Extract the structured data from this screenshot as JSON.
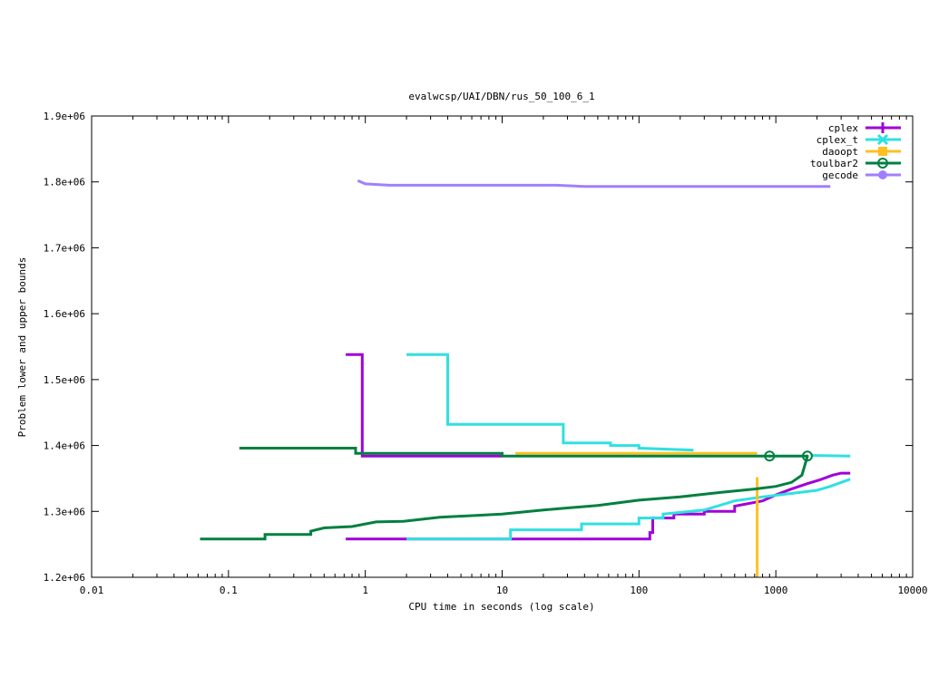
{
  "chart_data": {
    "type": "line",
    "title": "evalwcsp/UAI/DBN/rus_50_100_6_1",
    "xlabel": "CPU time in seconds (log scale)",
    "ylabel": "Problem lower and upper bounds",
    "xscale": "log",
    "xlim": [
      0.01,
      10000
    ],
    "ylim": [
      1200000,
      1900000
    ],
    "x_ticks": [
      0.01,
      0.1,
      1,
      10,
      100,
      1000,
      10000
    ],
    "x_tick_labels": [
      "0.01",
      "0.1",
      "1",
      "10",
      "100",
      "1000",
      "10000"
    ],
    "y_ticks": [
      1200000,
      1300000,
      1400000,
      1500000,
      1600000,
      1700000,
      1800000,
      1900000
    ],
    "y_tick_labels": [
      "1.2e+06",
      "1.3e+06",
      "1.4e+06",
      "1.5e+06",
      "1.6e+06",
      "1.7e+06",
      "1.8e+06",
      "1.9e+06"
    ],
    "legend_position": "top-right",
    "series": [
      {
        "name": "cplex",
        "color": "#a000d8",
        "marker": "plus",
        "paths": [
          [
            [
              0.72,
              1538000
            ],
            [
              0.95,
              1538000
            ],
            [
              0.95,
              1384000
            ],
            [
              10,
              1384000
            ]
          ],
          [
            [
              0.72,
              1258000
            ],
            [
              120,
              1258000
            ],
            [
              120,
              1268000
            ],
            [
              126,
              1268000
            ],
            [
              126,
              1290000
            ],
            [
              180,
              1290000
            ],
            [
              180,
              1296000
            ],
            [
              300,
              1296000
            ],
            [
              300,
              1300000
            ],
            [
              500,
              1300000
            ],
            [
              500,
              1308000
            ],
            [
              800,
              1316000
            ],
            [
              1000,
              1325000
            ],
            [
              1300,
              1334000
            ],
            [
              1700,
              1342000
            ],
            [
              2100,
              1348000
            ],
            [
              2600,
              1355000
            ],
            [
              3000,
              1358000
            ],
            [
              3500,
              1358000
            ]
          ]
        ],
        "markers": []
      },
      {
        "name": "cplex_t",
        "color": "#30e0e0",
        "marker": "x",
        "paths": [
          [
            [
              2,
              1538000
            ],
            [
              4,
              1538000
            ],
            [
              4,
              1432000
            ],
            [
              28,
              1432000
            ],
            [
              28,
              1404000
            ],
            [
              62,
              1404000
            ],
            [
              62,
              1400000
            ],
            [
              100,
              1400000
            ],
            [
              100,
              1396000
            ],
            [
              250,
              1393000
            ]
          ],
          [
            [
              1800,
              1385000
            ],
            [
              3500,
              1384000
            ]
          ],
          [
            [
              2,
              1258000
            ],
            [
              11.5,
              1258000
            ],
            [
              11.5,
              1272000
            ],
            [
              38,
              1272000
            ],
            [
              38,
              1281000
            ],
            [
              100,
              1281000
            ],
            [
              100,
              1290000
            ],
            [
              150,
              1290000
            ],
            [
              150,
              1296000
            ],
            [
              300,
              1302000
            ],
            [
              500,
              1316000
            ],
            [
              800,
              1322000
            ],
            [
              1400,
              1328000
            ],
            [
              2000,
              1332000
            ],
            [
              2500,
              1338000
            ],
            [
              3500,
              1349000
            ]
          ]
        ],
        "markers": []
      },
      {
        "name": "daoopt",
        "color": "#ffc020",
        "marker": "square",
        "paths": [
          [
            [
              12.5,
              1388000
            ],
            [
              730,
              1388000
            ]
          ],
          [
            [
              730,
              1200000
            ],
            [
              730,
              1352000
            ]
          ]
        ],
        "markers": []
      },
      {
        "name": "toulbar2",
        "color": "#008040",
        "marker": "circle-open",
        "paths": [
          [
            [
              0.12,
              1396000
            ],
            [
              0.85,
              1396000
            ],
            [
              0.85,
              1388000
            ],
            [
              10,
              1388000
            ],
            [
              10,
              1384000
            ],
            [
              1700,
              1384000
            ]
          ],
          [
            [
              0.062,
              1258000
            ],
            [
              0.185,
              1258000
            ],
            [
              0.185,
              1265000
            ],
            [
              0.4,
              1265000
            ],
            [
              0.4,
              1270000
            ],
            [
              0.5,
              1275000
            ],
            [
              0.8,
              1277000
            ],
            [
              1.2,
              1284000
            ],
            [
              1.9,
              1285000
            ],
            [
              3.5,
              1291000
            ],
            [
              10,
              1296000
            ],
            [
              20,
              1302000
            ],
            [
              50,
              1309000
            ],
            [
              100,
              1317000
            ],
            [
              200,
              1322000
            ],
            [
              400,
              1329000
            ],
            [
              700,
              1334000
            ],
            [
              1000,
              1338000
            ],
            [
              1300,
              1344000
            ],
            [
              1550,
              1355000
            ],
            [
              1700,
              1383000
            ]
          ]
        ],
        "markers": [
          [
            900,
            1384000
          ],
          [
            1700,
            1384000
          ]
        ]
      },
      {
        "name": "gecode",
        "color": "#a080ff",
        "marker": "circle-filled",
        "paths": [
          [
            [
              0.88,
              1802000
            ],
            [
              1.0,
              1797000
            ],
            [
              1.5,
              1795000
            ],
            [
              10,
              1795000
            ],
            [
              25,
              1795000
            ],
            [
              40,
              1793000
            ],
            [
              100,
              1793000
            ],
            [
              2500,
              1793000
            ]
          ]
        ],
        "markers": []
      }
    ]
  }
}
